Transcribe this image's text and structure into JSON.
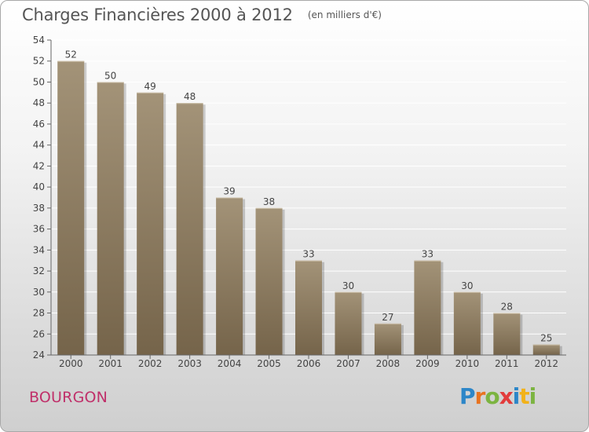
{
  "page": {
    "title": "Charges Financières 2000 à 2012",
    "subtitle": "(en milliers d'€)",
    "commune": "BOURGON",
    "logo_text": "Proxiti"
  },
  "colors": {
    "bar_light": "#a39378",
    "bar_dark": "#75644a",
    "title": "#555555",
    "commune": "#c0306a",
    "axis": "#666666",
    "grid": "#ffffff"
  },
  "chart_data": {
    "type": "bar",
    "title": "Charges Financières 2000 à 2012",
    "subtitle": "(en milliers d'€)",
    "categories": [
      "2000",
      "2001",
      "2002",
      "2003",
      "2004",
      "2005",
      "2006",
      "2007",
      "2008",
      "2009",
      "2010",
      "2011",
      "2012"
    ],
    "values": [
      52,
      50,
      49,
      48,
      39,
      38,
      33,
      30,
      27,
      33,
      30,
      28,
      25
    ],
    "ylim": [
      24,
      54
    ],
    "yticks": [
      24,
      26,
      28,
      30,
      32,
      34,
      36,
      38,
      40,
      42,
      44,
      46,
      48,
      50,
      52,
      54
    ],
    "grid": true,
    "data_labels": true
  }
}
